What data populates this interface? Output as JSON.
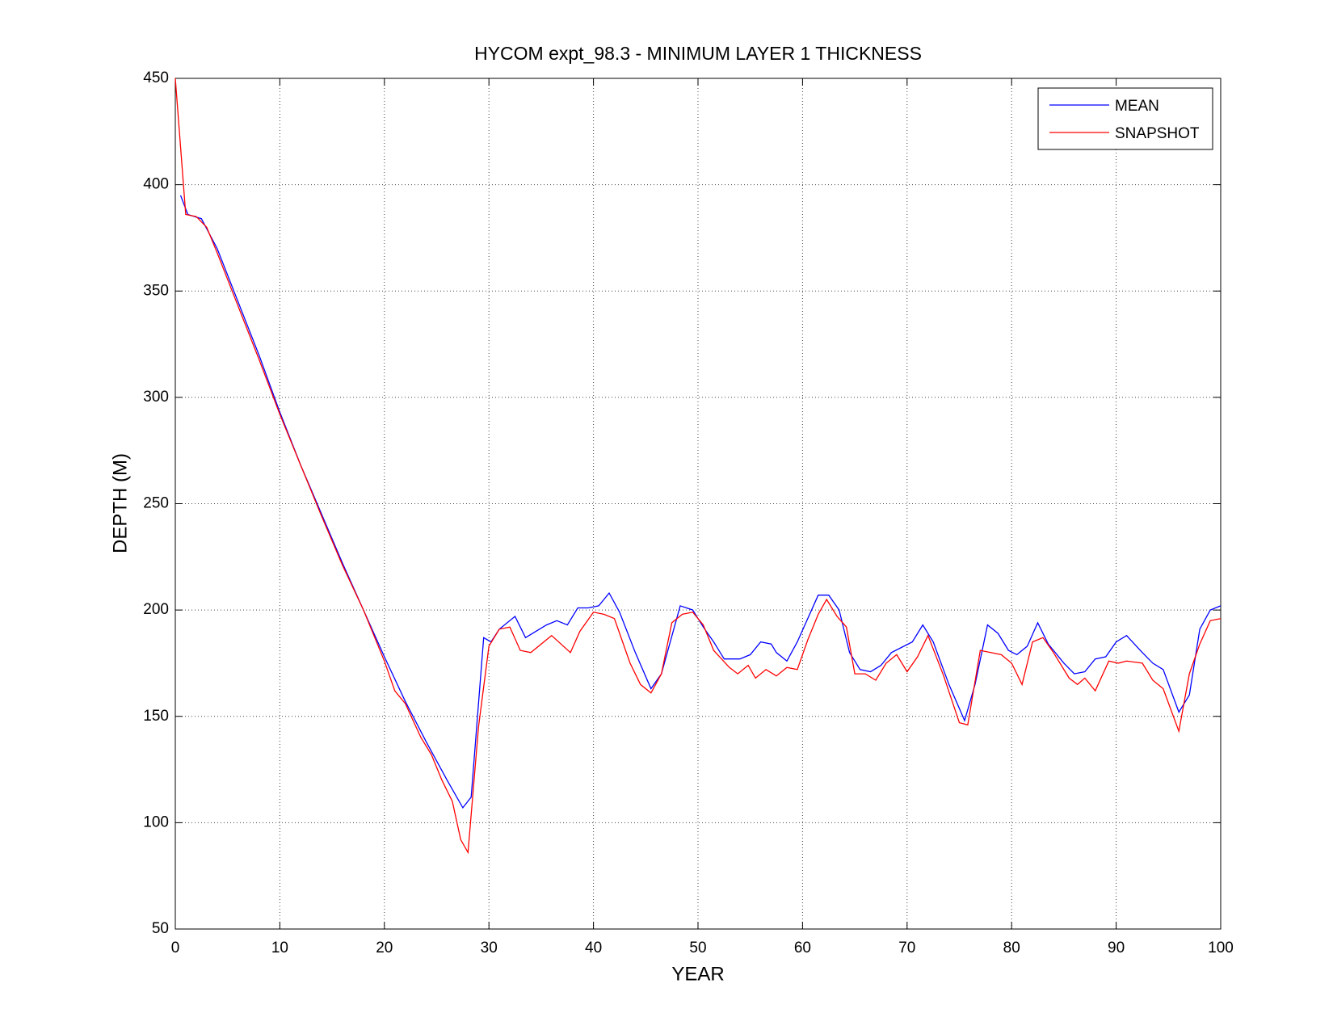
{
  "chart_data": {
    "type": "line",
    "title": "HYCOM expt_98.3 - MINIMUM LAYER 1 THICKNESS",
    "xlabel": "YEAR",
    "ylabel": "DEPTH (M)",
    "xlim": [
      0,
      100
    ],
    "ylim": [
      50,
      450
    ],
    "xticks": [
      0,
      10,
      20,
      30,
      40,
      50,
      60,
      70,
      80,
      90,
      100
    ],
    "yticks": [
      50,
      100,
      150,
      200,
      250,
      300,
      350,
      400,
      450
    ],
    "grid": true,
    "legend": "upper right",
    "series": [
      {
        "name": "MEAN",
        "color": "#0000ff",
        "x": [
          0.5,
          1.2,
          2.5,
          4,
          6,
          8,
          10,
          12,
          14,
          16,
          18,
          20,
          22,
          24,
          26,
          27.5,
          28.3,
          29.5,
          30.2,
          31,
          32.5,
          33.5,
          35.5,
          36.5,
          37.5,
          38.5,
          39.5,
          40.5,
          41.5,
          42.5,
          44,
          45.5,
          46.5,
          48.3,
          49.5,
          50.5,
          51.5,
          52.5,
          54,
          55,
          56,
          57,
          57.5,
          58.5,
          59.5,
          61.5,
          62.5,
          63.5,
          64.5,
          65.5,
          66.5,
          67.5,
          68.5,
          70.5,
          71.5,
          72.5,
          74,
          75.5,
          76.5,
          77.7,
          78.7,
          79.7,
          80.5,
          81.5,
          82.5,
          83.5,
          85,
          86,
          87,
          88,
          89,
          90,
          91,
          92.5,
          93.5,
          94.5,
          96,
          97,
          98,
          99,
          100
        ],
        "values": [
          395,
          386,
          384,
          370,
          345,
          320,
          293,
          268,
          245,
          222,
          200,
          178,
          157,
          138,
          120,
          107,
          112,
          187,
          185,
          191,
          197,
          187,
          193,
          195,
          193,
          201,
          201,
          202,
          208,
          199,
          180,
          163,
          170,
          202,
          200,
          192,
          185,
          177,
          177,
          179,
          185,
          184,
          180,
          176,
          185,
          207,
          207,
          200,
          180,
          172,
          171,
          174,
          180,
          185,
          193,
          185,
          165,
          148,
          165,
          193,
          189,
          181,
          179,
          183,
          194,
          184,
          175,
          170,
          171,
          177,
          178,
          185,
          188,
          180,
          175,
          172,
          152,
          160,
          191,
          200,
          202
        ]
      },
      {
        "name": "SNAPSHOT",
        "color": "#ff0000",
        "x": [
          0,
          1,
          2,
          3,
          4,
          6,
          8,
          10,
          12,
          14,
          16,
          18,
          20,
          21,
          22,
          23.5,
          24.5,
          25.5,
          26.5,
          27.3,
          28,
          29,
          30,
          31,
          32,
          33,
          34,
          36,
          37.8,
          38.7,
          40,
          41,
          42,
          43.5,
          44.5,
          45.5,
          46.5,
          47.5,
          48.5,
          49.5,
          50.5,
          51.5,
          53,
          53.8,
          54.8,
          55.5,
          56.5,
          57.5,
          58.5,
          59.5,
          60.5,
          61.5,
          62.3,
          63.3,
          64.2,
          65,
          66,
          67,
          68,
          69,
          70,
          71,
          72,
          73.5,
          75,
          75.8,
          77,
          78,
          79,
          80,
          81,
          82,
          83,
          84,
          85.5,
          86.3,
          87,
          88,
          89.3,
          90.2,
          91,
          92.5,
          93.5,
          94.5,
          96,
          97,
          98,
          99,
          100
        ],
        "values": [
          450,
          386,
          385,
          380,
          368,
          343,
          318,
          292,
          268,
          244,
          221,
          200,
          176,
          162,
          156,
          140,
          132,
          120,
          110,
          92,
          86,
          145,
          183,
          191,
          192,
          181,
          180,
          188,
          180,
          190,
          199,
          198,
          196,
          175,
          165,
          161,
          170,
          194,
          198,
          199,
          193,
          181,
          173,
          170,
          174,
          168,
          172,
          169,
          173,
          172,
          186,
          198,
          205,
          197,
          192,
          170,
          170,
          167,
          175,
          179,
          171,
          178,
          188,
          169,
          147,
          146,
          181,
          180,
          179,
          175,
          165,
          185,
          187,
          180,
          168,
          165,
          168,
          162,
          176,
          175,
          176,
          175,
          167,
          163,
          143,
          170,
          184,
          195,
          196
        ]
      }
    ]
  }
}
